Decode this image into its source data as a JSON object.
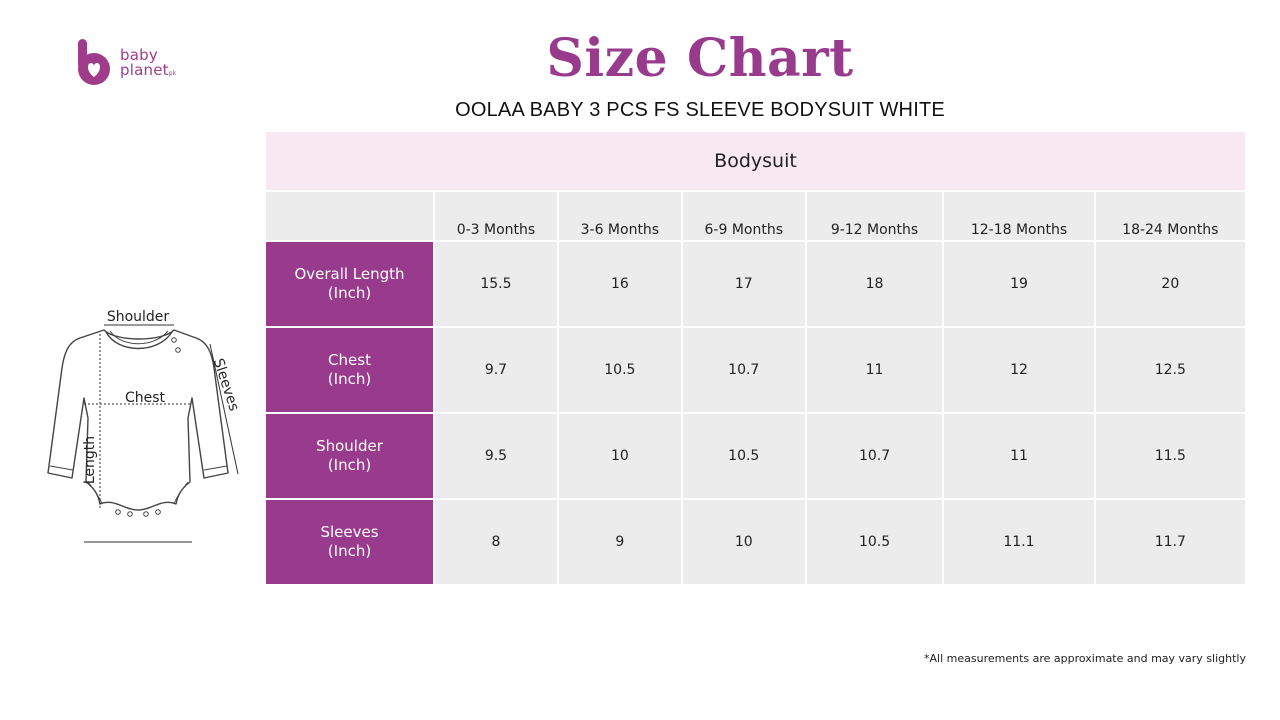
{
  "brand": {
    "line1": "baby",
    "line2": "planet",
    "suffix": "pk",
    "color": "#a03d8a"
  },
  "title": "Size Chart",
  "subtitle": "OOLAA BABY 3 PCS FS SLEEVE BODYSUIT WHITE",
  "diagram": {
    "labels": {
      "shoulder": "Shoulder",
      "chest": "Chest",
      "length": "Length",
      "sleeves": "Sleeves"
    }
  },
  "table": {
    "garment": "Bodysuit",
    "columns": [
      "0-3 Months",
      "3-6 Months",
      "6-9 Months",
      "9-12 Months",
      "12-18 Months",
      "18-24 Months"
    ],
    "rows": [
      {
        "label": "Overall Length",
        "unit": "(Inch)",
        "values": [
          "15.5",
          "16",
          "17",
          "18",
          "19",
          "20"
        ]
      },
      {
        "label": "Chest",
        "unit": "(Inch)",
        "values": [
          "9.7",
          "10.5",
          "10.7",
          "11",
          "12",
          "12.5"
        ]
      },
      {
        "label": "Shoulder",
        "unit": "(Inch)",
        "values": [
          "9.5",
          "10",
          "10.5",
          "10.7",
          "11",
          "11.5"
        ]
      },
      {
        "label": "Sleeves",
        "unit": "(Inch)",
        "values": [
          "8",
          "9",
          "10",
          "10.5",
          "11.1",
          "11.7"
        ]
      }
    ]
  },
  "footnote": "*All measurements are approximate and may vary slightly",
  "colors": {
    "accent": "#983b8d",
    "header_pink": "#f8e8f2",
    "cell_gray": "#ececec"
  }
}
